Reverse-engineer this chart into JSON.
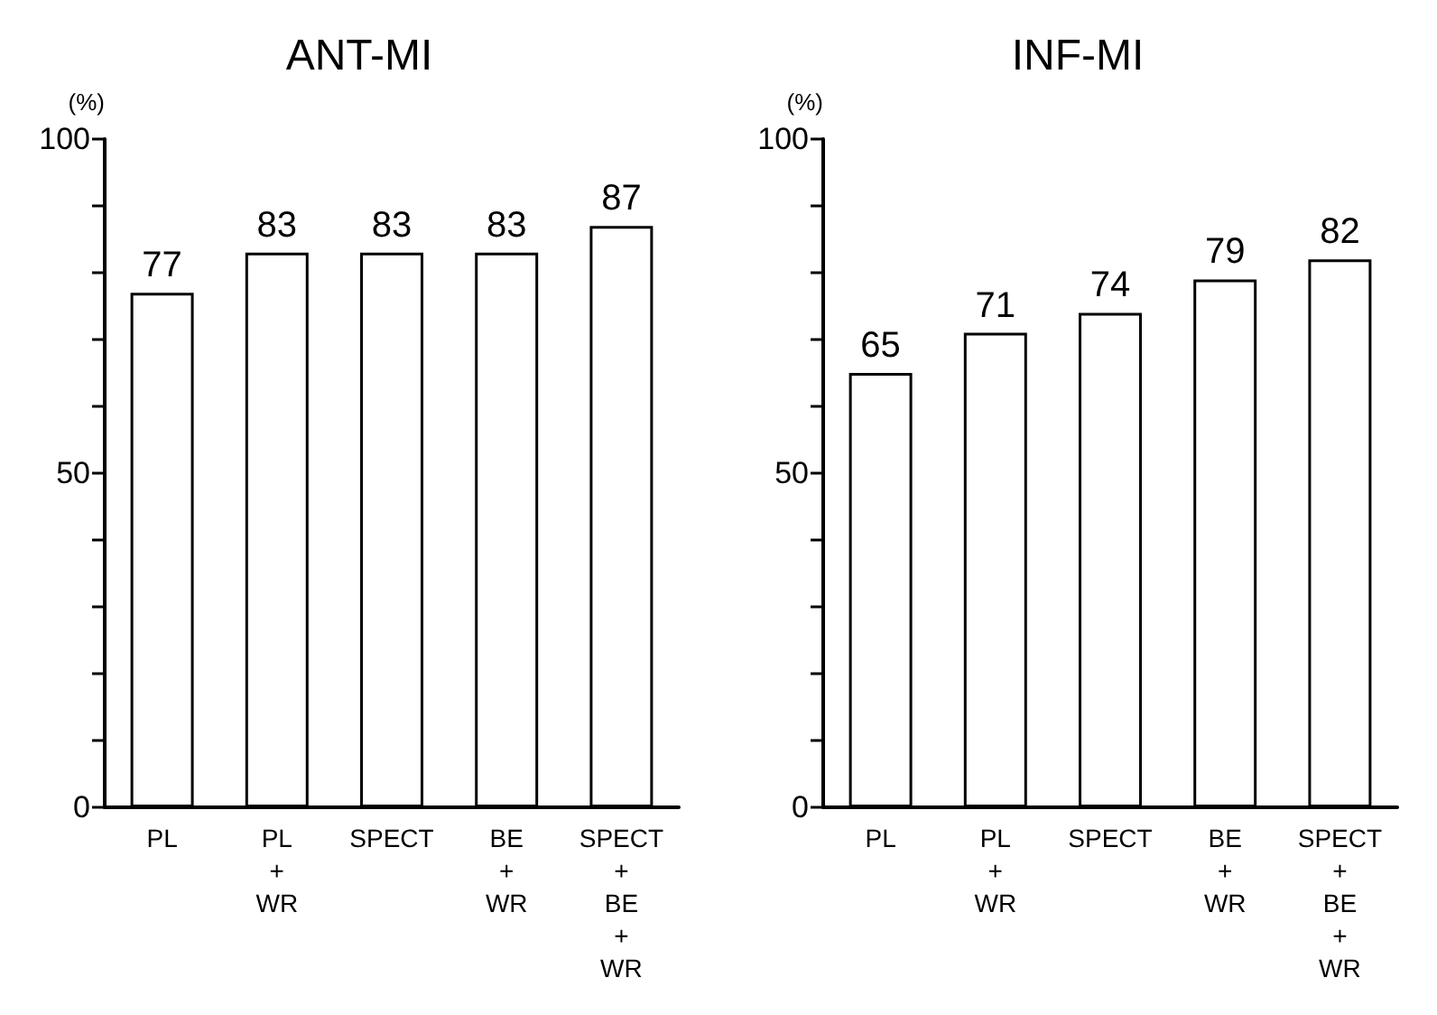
{
  "chart_data": [
    {
      "type": "bar",
      "title": "ANT-MI",
      "ylabel": "(%)",
      "categories": [
        "PL",
        "PL\n+\nWR",
        "SPECT",
        "BE\n+\nWR",
        "SPECT\n+\nBE\n+\nWR"
      ],
      "values": [
        77,
        83,
        83,
        83,
        87
      ],
      "color": "#ffffff",
      "ylim": [
        0,
        100
      ],
      "yticks": [
        0,
        {
          "value": 10,
          "label": null
        },
        {
          "value": 20,
          "label": null
        },
        {
          "value": 30,
          "label": null
        },
        {
          "value": 40,
          "label": null
        },
        50,
        {
          "value": 60,
          "label": null
        },
        {
          "value": 70,
          "label": null
        },
        {
          "value": 80,
          "label": null
        },
        {
          "value": 90,
          "label": null
        },
        100
      ],
      "data_labels": true
    },
    {
      "type": "bar",
      "title": "INF-MI",
      "ylabel": "(%)",
      "categories": [
        "PL",
        "PL\n+\nWR",
        "SPECT",
        "BE\n+\nWR",
        "SPECT\n+\nBE\n+\nWR"
      ],
      "values": [
        65,
        71,
        74,
        79,
        82
      ],
      "color": "#ffffff",
      "ylim": [
        0,
        100
      ],
      "yticks": [
        0,
        {
          "value": 10,
          "label": null
        },
        {
          "value": 20,
          "label": null
        },
        {
          "value": 30,
          "label": null
        },
        {
          "value": 40,
          "label": null
        },
        50,
        {
          "value": 60,
          "label": null
        },
        {
          "value": 70,
          "label": null
        },
        {
          "value": 80,
          "label": null
        },
        {
          "value": 90,
          "label": null
        },
        100
      ],
      "data_labels": true
    }
  ]
}
